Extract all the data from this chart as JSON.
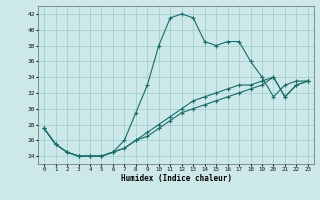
{
  "xlabel": "Humidex (Indice chaleur)",
  "bg_color": "#cce8e8",
  "line_color": "#1a6b6b",
  "grid_color": "#99cccc",
  "xlim": [
    -0.5,
    23.5
  ],
  "ylim": [
    23,
    43
  ],
  "xticks": [
    0,
    1,
    2,
    3,
    4,
    5,
    6,
    7,
    8,
    9,
    10,
    11,
    12,
    13,
    14,
    15,
    16,
    17,
    18,
    19,
    20,
    21,
    22,
    23
  ],
  "yticks": [
    24,
    26,
    28,
    30,
    32,
    34,
    36,
    38,
    40,
    42
  ],
  "series": [
    {
      "x": [
        0,
        1,
        2,
        3,
        4,
        5,
        6,
        7,
        8,
        9,
        10,
        11,
        12,
        13,
        14,
        15,
        16,
        17,
        18,
        19,
        20,
        21,
        22,
        23
      ],
      "y": [
        27.5,
        25.5,
        24.5,
        24,
        24,
        24,
        24.5,
        26,
        29.5,
        33,
        38,
        41.5,
        42,
        41.5,
        38.5,
        38,
        38.5,
        38.5,
        36,
        34,
        31.5,
        33,
        33.5,
        33.5
      ]
    },
    {
      "x": [
        0,
        1,
        2,
        3,
        4,
        5,
        6,
        7,
        8,
        9,
        10,
        11,
        12,
        13,
        14,
        15,
        16,
        17,
        18,
        19,
        20,
        21,
        22,
        23
      ],
      "y": [
        27.5,
        25.5,
        24.5,
        24,
        24,
        24,
        24.5,
        25,
        26,
        27,
        28,
        29,
        30,
        31,
        31.5,
        32,
        32.5,
        33,
        33,
        33.5,
        34,
        31.5,
        33,
        33.5
      ]
    },
    {
      "x": [
        0,
        1,
        2,
        3,
        4,
        5,
        6,
        7,
        8,
        9,
        10,
        11,
        12,
        13,
        14,
        15,
        16,
        17,
        18,
        19,
        20,
        21,
        22,
        23
      ],
      "y": [
        27.5,
        25.5,
        24.5,
        24,
        24,
        24,
        24.5,
        25,
        26,
        26.5,
        27.5,
        28.5,
        29.5,
        30,
        30.5,
        31,
        31.5,
        32,
        32.5,
        33,
        34,
        31.5,
        33,
        33.5
      ]
    }
  ]
}
